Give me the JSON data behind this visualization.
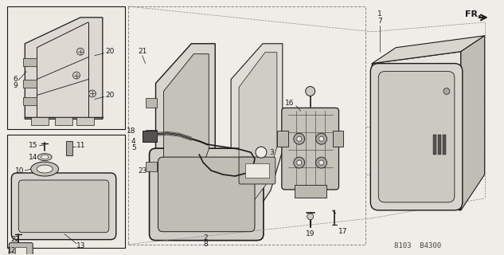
{
  "background_color": "#f0ede8",
  "diagram_code": "8103  B4300",
  "direction_label": "FR.",
  "line_color": "#1a1a1a",
  "text_color": "#1a1a1a",
  "fig_width": 6.33,
  "fig_height": 3.2,
  "dpi": 100,
  "parts": {
    "top_inset_labels": [
      [
        "6",
        "9"
      ],
      [
        "20"
      ],
      [
        "20"
      ]
    ],
    "bot_inset_labels": [
      [
        "15",
        "14",
        "11",
        "10"
      ],
      [
        "22",
        "12",
        "13"
      ]
    ],
    "main_labels": [
      "21",
      "23",
      "18",
      "4",
      "5",
      "3",
      "2",
      "8",
      "16",
      "19",
      "17",
      "1",
      "7"
    ]
  }
}
